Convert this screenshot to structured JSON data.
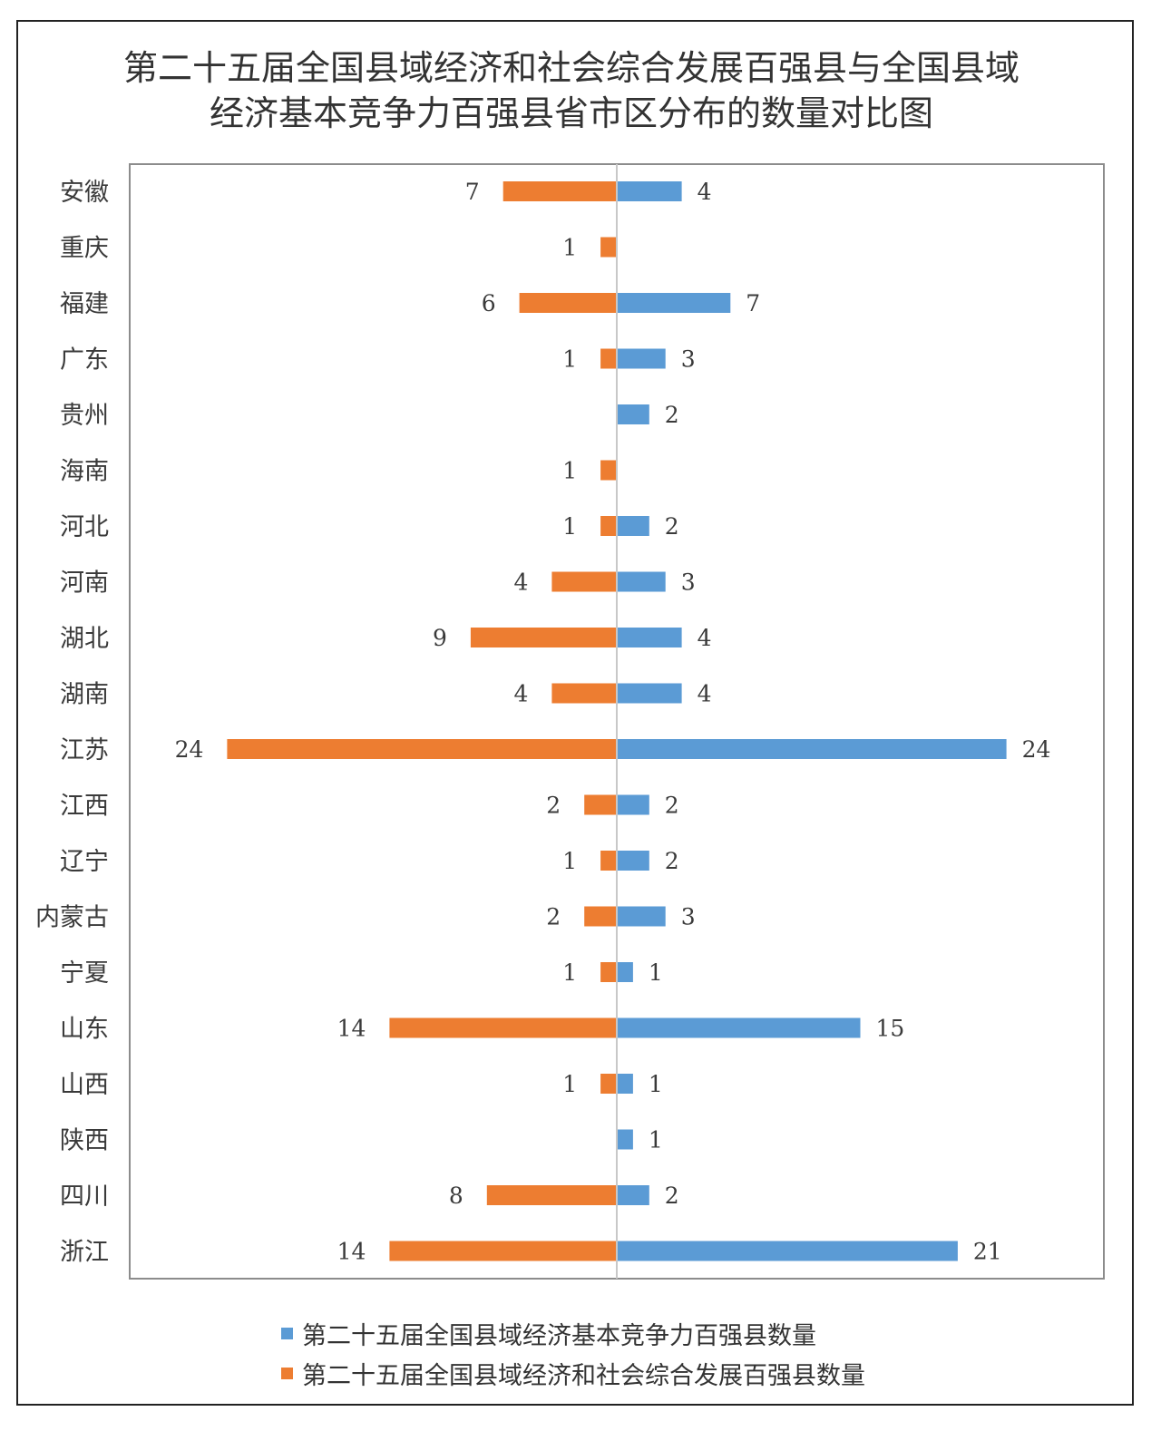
{
  "title_line1": "第二十五届全国县域经济和社会综合发展百强县与全国县域",
  "title_line2": "经济基本竞争力百强县省市区分布的数量对比图",
  "colors": {
    "blue": "#5b9bd5",
    "orange": "#ed7d31",
    "axis": "#c8c8c8",
    "plot_border": "#8c8c8c",
    "text": "#3a3a3a"
  },
  "chart_data": {
    "type": "bar",
    "orientation": "horizontal-diverging",
    "title": "第二十五届全国县域经济和社会综合发展百强县与全国县域经济基本竞争力百强县省市区分布的数量对比图",
    "categories": [
      "安徽",
      "重庆",
      "福建",
      "广东",
      "贵州",
      "海南",
      "河北",
      "河南",
      "湖北",
      "湖南",
      "江苏",
      "江西",
      "辽宁",
      "内蒙古",
      "宁夏",
      "山东",
      "山西",
      "陕西",
      "四川",
      "浙江"
    ],
    "series": [
      {
        "name": "第二十五届全国县域经济基本竞争力百强县数量",
        "direction": "right",
        "color": "#5b9bd5",
        "values": [
          4,
          null,
          7,
          3,
          2,
          null,
          2,
          3,
          4,
          4,
          24,
          2,
          2,
          3,
          1,
          15,
          1,
          1,
          2,
          21
        ]
      },
      {
        "name": "第二十五届全国县域经济和社会综合发展百强县数量",
        "direction": "left",
        "color": "#ed7d31",
        "values": [
          7,
          1,
          6,
          1,
          null,
          1,
          1,
          4,
          9,
          4,
          24,
          2,
          1,
          2,
          1,
          14,
          1,
          null,
          8,
          14
        ]
      }
    ],
    "xlim": [
      -30,
      30
    ],
    "legend_position": "bottom"
  }
}
